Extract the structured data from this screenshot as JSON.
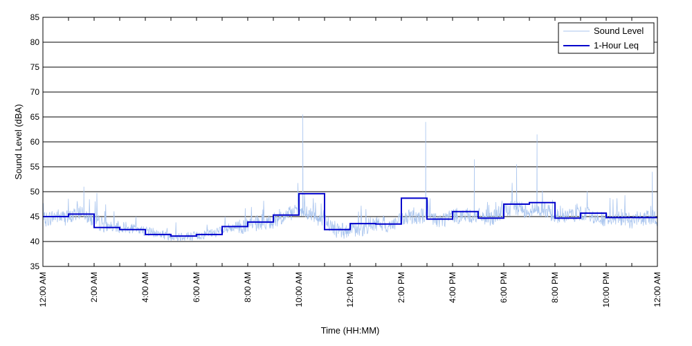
{
  "chart_data": {
    "type": "line",
    "xlabel": "Time (HH:MM)",
    "ylabel": "Sound Level (dBA)",
    "ylim": [
      35,
      85
    ],
    "yticks": [
      35,
      40,
      45,
      50,
      55,
      60,
      65,
      70,
      75,
      80,
      85
    ],
    "xlim_hours": [
      0,
      24
    ],
    "xtick_labels": [
      "12:00 AM",
      "2:00 AM",
      "4:00 AM",
      "6:00 AM",
      "8:00 AM",
      "10:00 AM",
      "12:00 PM",
      "2:00 PM",
      "4:00 PM",
      "6:00 PM",
      "8:00 PM",
      "10:00 PM",
      "12:00 AM"
    ],
    "grid": "horizontal",
    "legend_position": "top-right",
    "colors": {
      "sound_level": "#a8c4ee",
      "leq": "#0000cc"
    },
    "series": [
      {
        "name": "Sound Level",
        "style": "thin-light-blue",
        "hour_x": [
          0,
          0.5,
          1,
          1.5,
          2,
          2.5,
          3,
          3.5,
          4,
          4.5,
          5,
          5.5,
          6,
          6.5,
          7,
          7.5,
          8,
          8.5,
          9,
          9.5,
          10,
          10.5,
          11,
          11.5,
          12,
          12.5,
          13,
          13.5,
          14,
          14.5,
          15,
          15.5,
          16,
          16.5,
          17,
          17.5,
          18,
          18.5,
          19,
          19.5,
          20,
          20.5,
          21,
          21.5,
          22,
          22.5,
          23,
          23.5,
          24
        ],
        "values": [
          44,
          45,
          44.5,
          46,
          44,
          43,
          42.5,
          42.5,
          42,
          41.5,
          41,
          41,
          41,
          41.5,
          42,
          42.5,
          43,
          43.5,
          44,
          45,
          46,
          45,
          44,
          42,
          42,
          42.5,
          43.5,
          43,
          44,
          45,
          45,
          44,
          45,
          45,
          45,
          44.5,
          46,
          46.5,
          46,
          46.5,
          45,
          45,
          45.5,
          45,
          44,
          44.5,
          44,
          44.5,
          44.5
        ],
        "peaks": [
          {
            "hour": 1.6,
            "value": 51
          },
          {
            "hour": 10.15,
            "value": 65.5
          },
          {
            "hour": 14.95,
            "value": 64
          },
          {
            "hour": 16.85,
            "value": 56.5
          },
          {
            "hour": 18.5,
            "value": 55.5
          },
          {
            "hour": 19.3,
            "value": 61.5
          },
          {
            "hour": 23.8,
            "value": 54
          }
        ]
      },
      {
        "name": "1-Hour Leq",
        "style": "step",
        "hour_start": [
          0,
          1,
          2,
          3,
          4,
          5,
          6,
          7,
          8,
          9,
          10,
          11,
          12,
          13,
          14,
          15,
          16,
          17,
          18,
          19,
          20,
          21,
          22,
          23
        ],
        "values": [
          45,
          45.5,
          42.8,
          42.4,
          41.4,
          41.1,
          41.4,
          43,
          43.9,
          45.3,
          49.6,
          42.4,
          43.6,
          43.5,
          48.7,
          44.5,
          46,
          44.7,
          47.5,
          47.8,
          44.7,
          45.7,
          44.8,
          44.8
        ]
      }
    ]
  }
}
